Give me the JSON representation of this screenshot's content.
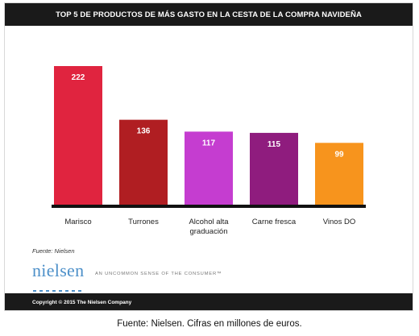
{
  "chart_data": {
    "type": "bar",
    "title": "TOP 5 DE PRODUCTOS DE MÁS GASTO EN LA CESTA DE LA COMPRA NAVIDEÑA",
    "categories": [
      "Marisco",
      "Turrones",
      "Alcohol alta graduación",
      "Carne fresca",
      "Vinos DO"
    ],
    "values": [
      222,
      136,
      117,
      115,
      99
    ],
    "data_labels": [
      "222",
      "136",
      "117",
      "115",
      "99"
    ],
    "colors": [
      "#e0243f",
      "#b01e22",
      "#c53dd0",
      "#8f1c7e",
      "#f7941d"
    ],
    "label_color": "#ffffff",
    "baseline_color": "#111111",
    "grid": false,
    "legend": "none",
    "ylim": [
      0,
      222
    ]
  },
  "source_note": "Fuente: Nielsen",
  "brand": {
    "name": "nielsen",
    "tagline": "AN UNCOMMON SENSE OF THE CONSUMER™",
    "color": "#4d90c9"
  },
  "footer": {
    "copyright": "Copyright © 2015 The Nielsen Company"
  },
  "caption": "Fuente: Nielsen. Cifras en millones de euros."
}
